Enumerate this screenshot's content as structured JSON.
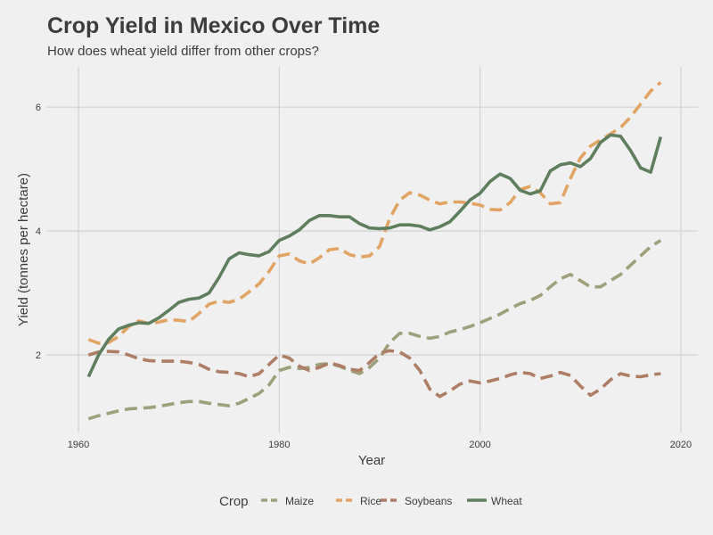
{
  "chart_data": {
    "type": "line",
    "title": "Crop Yield in Mexico Over Time",
    "subtitle": "How does wheat yield differ from other crops?",
    "xlabel": "Year",
    "ylabel": "Yield (tonnes per hectare)",
    "xlim": [
      1961,
      2018
    ],
    "ylim": [
      0.75,
      6.65
    ],
    "x_ticks": [
      1960,
      1980,
      2000,
      2020
    ],
    "y_ticks": [
      2,
      4,
      6
    ],
    "grid": true,
    "legend_title": "Crop",
    "legend_position": "bottom",
    "x": [
      1961,
      1962,
      1963,
      1964,
      1965,
      1966,
      1967,
      1968,
      1969,
      1970,
      1971,
      1972,
      1973,
      1974,
      1975,
      1976,
      1977,
      1978,
      1979,
      1980,
      1981,
      1982,
      1983,
      1984,
      1985,
      1986,
      1987,
      1988,
      1989,
      1990,
      1991,
      1992,
      1993,
      1994,
      1995,
      1996,
      1997,
      1998,
      1999,
      2000,
      2001,
      2002,
      2003,
      2004,
      2005,
      2006,
      2007,
      2008,
      2009,
      2010,
      2011,
      2012,
      2013,
      2014,
      2015,
      2016,
      2017,
      2018
    ],
    "series": [
      {
        "name": "Maize",
        "color": "#9ea07c",
        "dashed": true,
        "values": [
          0.97,
          1.02,
          1.06,
          1.1,
          1.13,
          1.14,
          1.15,
          1.17,
          1.2,
          1.23,
          1.25,
          1.25,
          1.22,
          1.2,
          1.18,
          1.22,
          1.3,
          1.38,
          1.52,
          1.75,
          1.8,
          1.78,
          1.8,
          1.85,
          1.86,
          1.82,
          1.75,
          1.7,
          1.8,
          1.95,
          2.2,
          2.35,
          2.35,
          2.3,
          2.27,
          2.3,
          2.37,
          2.41,
          2.46,
          2.52,
          2.59,
          2.66,
          2.75,
          2.83,
          2.88,
          2.96,
          3.1,
          3.23,
          3.3,
          3.2,
          3.1,
          3.1,
          3.2,
          3.3,
          3.45,
          3.6,
          3.75,
          3.85
        ]
      },
      {
        "name": "Rice",
        "color": "#e1a464",
        "dashed": true,
        "values": [
          2.25,
          2.19,
          2.2,
          2.3,
          2.46,
          2.55,
          2.51,
          2.53,
          2.57,
          2.56,
          2.54,
          2.67,
          2.82,
          2.87,
          2.85,
          2.9,
          3.02,
          3.15,
          3.35,
          3.6,
          3.63,
          3.52,
          3.47,
          3.57,
          3.7,
          3.72,
          3.62,
          3.58,
          3.6,
          3.75,
          4.2,
          4.5,
          4.62,
          4.58,
          4.5,
          4.44,
          4.47,
          4.47,
          4.45,
          4.42,
          4.35,
          4.34,
          4.46,
          4.67,
          4.72,
          4.62,
          4.44,
          4.46,
          4.85,
          5.18,
          5.37,
          5.47,
          5.57,
          5.67,
          5.84,
          6.05,
          6.26,
          6.4
        ]
      },
      {
        "name": "Soybeans",
        "color": "#ad7d65",
        "dashed": true,
        "values": [
          2.0,
          2.05,
          2.06,
          2.05,
          2.0,
          1.94,
          1.91,
          1.9,
          1.9,
          1.9,
          1.88,
          1.85,
          1.77,
          1.73,
          1.72,
          1.7,
          1.65,
          1.7,
          1.85,
          2.0,
          1.95,
          1.82,
          1.75,
          1.8,
          1.87,
          1.83,
          1.77,
          1.75,
          1.88,
          2.03,
          2.07,
          2.05,
          1.95,
          1.75,
          1.45,
          1.33,
          1.42,
          1.53,
          1.58,
          1.55,
          1.58,
          1.62,
          1.68,
          1.72,
          1.7,
          1.62,
          1.66,
          1.72,
          1.67,
          1.5,
          1.35,
          1.45,
          1.6,
          1.7,
          1.66,
          1.65,
          1.68,
          1.7
        ]
      },
      {
        "name": "Wheat",
        "color": "#5e7e5e",
        "dashed": false,
        "values": [
          1.65,
          2.0,
          2.25,
          2.42,
          2.48,
          2.52,
          2.51,
          2.6,
          2.72,
          2.85,
          2.9,
          2.92,
          3.0,
          3.25,
          3.55,
          3.65,
          3.62,
          3.6,
          3.67,
          3.85,
          3.92,
          4.02,
          4.17,
          4.25,
          4.25,
          4.23,
          4.23,
          4.12,
          4.05,
          4.04,
          4.05,
          4.1,
          4.1,
          4.08,
          4.02,
          4.07,
          4.15,
          4.32,
          4.5,
          4.61,
          4.8,
          4.92,
          4.85,
          4.66,
          4.6,
          4.65,
          4.97,
          5.07,
          5.1,
          5.04,
          5.17,
          5.43,
          5.55,
          5.53,
          5.3,
          5.02,
          4.95,
          5.52
        ]
      }
    ]
  }
}
